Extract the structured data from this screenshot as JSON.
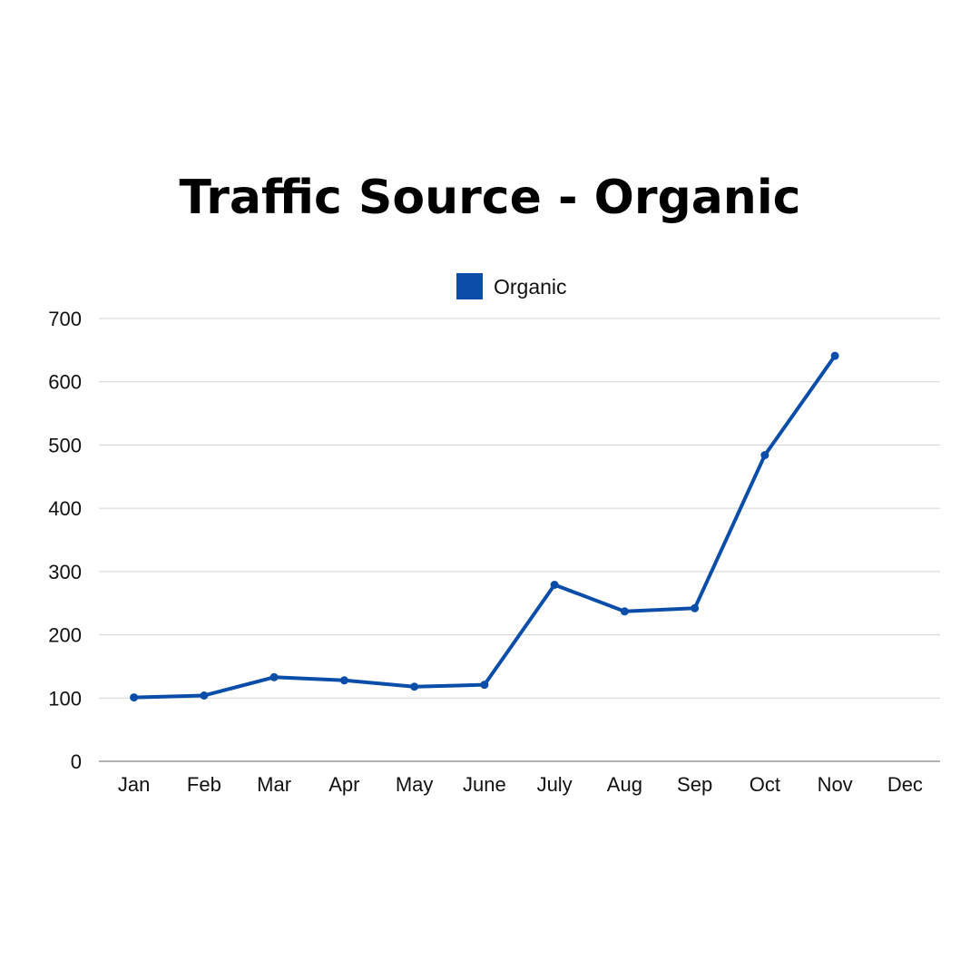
{
  "chart_data": {
    "type": "line",
    "title": "Traffic Source - Organic",
    "xlabel": "",
    "ylabel": "",
    "categories": [
      "Jan",
      "Feb",
      "Mar",
      "Apr",
      "May",
      "June",
      "July",
      "Aug",
      "Sep",
      "Oct",
      "Nov",
      "Dec"
    ],
    "series": [
      {
        "name": "Organic",
        "color": "#0B4EAA",
        "values": [
          101,
          104,
          133,
          128,
          118,
          121,
          279,
          237,
          242,
          484,
          641,
          null
        ]
      }
    ],
    "ylim": [
      0,
      700
    ],
    "yticks": [
      "0",
      "100",
      "200",
      "300",
      "400",
      "500",
      "600",
      "700"
    ],
    "grid": true,
    "legend_position": "top-center"
  }
}
